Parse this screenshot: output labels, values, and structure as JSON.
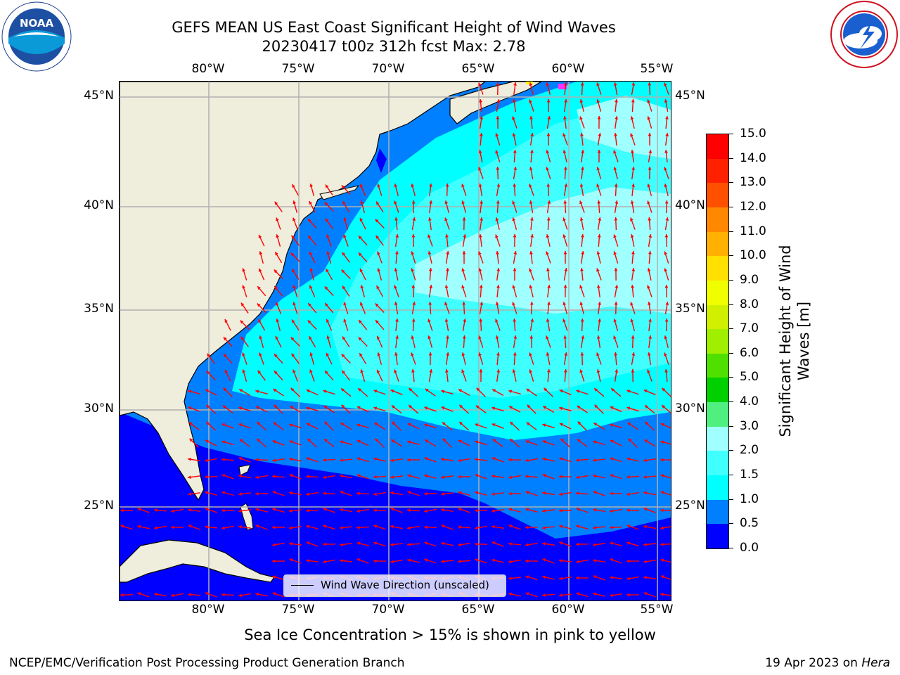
{
  "title": {
    "line1": "GEFS MEAN US East Coast Significant Height of Wind Waves",
    "line2": "20230417 t00z 312h fcst   Max: 2.78"
  },
  "axes": {
    "lon_labels": [
      "80°W",
      "75°W",
      "70°W",
      "65°W",
      "60°W",
      "55°W"
    ],
    "lat_labels": [
      "45°N",
      "40°N",
      "35°N",
      "30°N",
      "25°N"
    ]
  },
  "colorbar": {
    "label_line1": "Significant Height of Wind",
    "label_line2": "Waves [m]",
    "ticks": [
      "0.0",
      "0.5",
      "1.0",
      "1.5",
      "2.0",
      "3.0",
      "4.0",
      "5.0",
      "6.0",
      "7.0",
      "8.0",
      "9.0",
      "10.0",
      "11.0",
      "12.0",
      "13.0",
      "14.0",
      "15.0"
    ],
    "colors": [
      "#0000ff",
      "#0080ff",
      "#00ffff",
      "#40ffff",
      "#a0ffff",
      "#50f080",
      "#00d000",
      "#50e000",
      "#a0ee00",
      "#d0f000",
      "#f0ff00",
      "#ffe000",
      "#ffb000",
      "#ff8800",
      "#ff5000",
      "#ff2000",
      "#ff0000"
    ]
  },
  "legend": {
    "label": "Wind Wave Direction (unscaled)"
  },
  "subtitle": "Sea Ice Concentration > 15% is shown in pink to yellow",
  "footer": {
    "left": "NCEP/EMC/Verification Post Processing Product Generation Branch",
    "right_prefix": "19 Apr 2023 on ",
    "right_host": "Hera"
  },
  "map": {
    "land_color": "#efeddc",
    "arrow_color": "#ff0000",
    "grid_color": "#b0b0b0"
  }
}
